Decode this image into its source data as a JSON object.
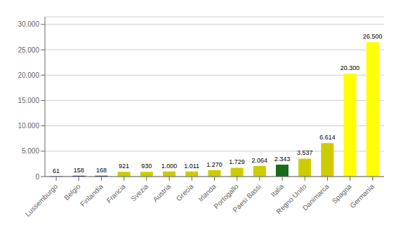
{
  "chart_data": {
    "type": "bar",
    "categories": [
      "Lussemburgo",
      "Belgio",
      "Finlandia",
      "Francia",
      "Svezia",
      "Austria",
      "Grecia",
      "Irlanda",
      "Portogallo",
      "Paesi Bassi",
      "Italia",
      "Regno Unito",
      "Danimarca",
      "Spagna",
      "Germania"
    ],
    "values": [
      61,
      158,
      168,
      921,
      930,
      1000,
      1011,
      1270,
      1729,
      2064,
      2343,
      3537,
      6614,
      20300,
      26500
    ],
    "value_labels": [
      "61",
      "158",
      "168",
      "921",
      "930",
      "1.000",
      "1.011",
      "1.270",
      "1.729",
      "2.064",
      "2.343",
      "3.537",
      "6.614",
      "20.300",
      "26.500"
    ],
    "colors": [
      "#333399",
      "#333399",
      "#333399",
      "#cccc00",
      "#cccc00",
      "#cccc00",
      "#cccc00",
      "#cccc00",
      "#cccc00",
      "#cccc00",
      "#1a6b1a",
      "#cccc00",
      "#cccc00",
      "#ffff00",
      "#ffff00"
    ],
    "ylim": [
      0,
      31500
    ],
    "yticks": [
      0,
      {
        "value": 5000,
        "label": "5.000"
      },
      {
        "value": 10000,
        "label": "10.000"
      },
      {
        "value": 15000,
        "label": "15.000"
      },
      {
        "value": 20000,
        "label": "20.000"
      },
      {
        "value": 25000,
        "label": "25.000"
      },
      {
        "value": 30000,
        "label": "30.000"
      }
    ],
    "grid": true,
    "data_labels": true
  }
}
